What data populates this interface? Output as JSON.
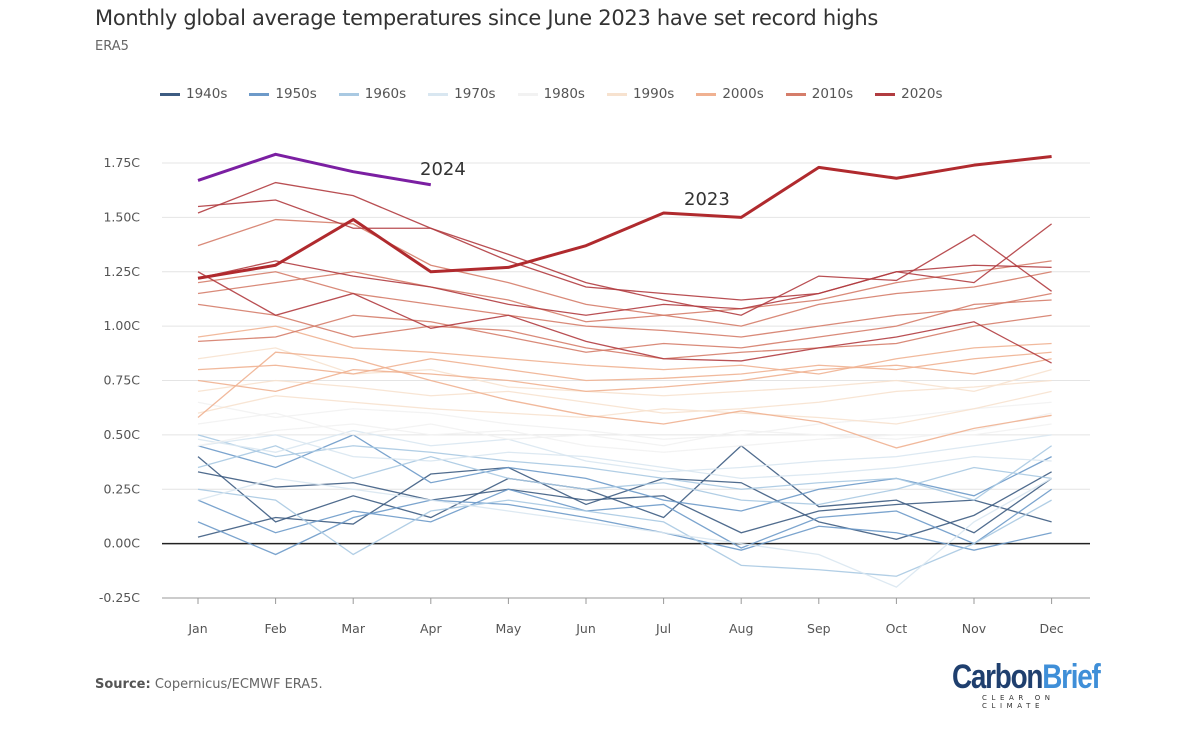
{
  "header": {
    "title": "Monthly global average temperatures since June 2023 have set record highs",
    "subtitle": "ERA5"
  },
  "footer": {
    "source_label": "Source:",
    "source_text": " Copernicus/ECMWF ERA5.",
    "logo_main_1": "Carbon",
    "logo_main_2": "Brief",
    "logo_tagline": "CLEAR ON CLIMATE"
  },
  "chart_data": {
    "type": "line",
    "title": "Monthly global average temperatures since June 2023 have set record highs",
    "subtitle": "ERA5",
    "categories": [
      "Jan",
      "Feb",
      "Mar",
      "Apr",
      "May",
      "Jun",
      "Jul",
      "Aug",
      "Sep",
      "Oct",
      "Nov",
      "Dec"
    ],
    "ylim": [
      -0.25,
      1.75
    ],
    "yticks": [
      -0.25,
      0,
      0.25,
      0.5,
      0.75,
      1.0,
      1.25,
      1.5,
      1.75
    ],
    "ytick_labels": [
      "-0.25C",
      "0.00C",
      "0.25C",
      "0.50C",
      "0.75C",
      "1.00C",
      "1.25C",
      "1.50C",
      "1.75C"
    ],
    "grid": true,
    "legend_position": "top",
    "legend": [
      {
        "label": "1940s",
        "color": "#3d5c82"
      },
      {
        "label": "1950s",
        "color": "#6d9ac9"
      },
      {
        "label": "1960s",
        "color": "#a9c9e2"
      },
      {
        "label": "1970s",
        "color": "#d9e7f1"
      },
      {
        "label": "1980s",
        "color": "#f2f2f2"
      },
      {
        "label": "1990s",
        "color": "#f7e2cf"
      },
      {
        "label": "2000s",
        "color": "#f0b191"
      },
      {
        "label": "2010s",
        "color": "#d57d6a"
      },
      {
        "label": "2020s",
        "color": "#b13c40"
      }
    ],
    "background_series": [
      {
        "decade": "1940s",
        "values": [
          0.03,
          0.12,
          0.09,
          0.32,
          0.35,
          0.18,
          0.3,
          0.28,
          0.1,
          0.02,
          0.13,
          0.33
        ]
      },
      {
        "decade": "1940s",
        "values": [
          0.33,
          0.26,
          0.28,
          0.2,
          0.25,
          0.2,
          0.22,
          0.05,
          0.15,
          0.18,
          0.2,
          0.1
        ]
      },
      {
        "decade": "1940s",
        "values": [
          0.4,
          0.1,
          0.22,
          0.12,
          0.3,
          0.25,
          0.12,
          0.45,
          0.17,
          0.2,
          0.05,
          0.3
        ]
      },
      {
        "decade": "1950s",
        "values": [
          0.2,
          0.05,
          0.15,
          0.1,
          0.25,
          0.15,
          0.18,
          -0.02,
          0.12,
          0.15,
          0.0,
          0.25
        ]
      },
      {
        "decade": "1950s",
        "values": [
          0.45,
          0.35,
          0.5,
          0.28,
          0.35,
          0.3,
          0.2,
          0.15,
          0.25,
          0.3,
          0.22,
          0.4
        ]
      },
      {
        "decade": "1950s",
        "values": [
          0.1,
          -0.05,
          0.12,
          0.2,
          0.18,
          0.12,
          0.05,
          -0.03,
          0.08,
          0.05,
          -0.03,
          0.05
        ]
      },
      {
        "decade": "1960s",
        "values": [
          0.35,
          0.45,
          0.3,
          0.4,
          0.3,
          0.25,
          0.28,
          0.2,
          0.18,
          0.25,
          0.35,
          0.3
        ]
      },
      {
        "decade": "1960s",
        "values": [
          0.25,
          0.2,
          -0.05,
          0.15,
          0.2,
          0.15,
          0.1,
          -0.1,
          -0.12,
          -0.15,
          0.0,
          0.2
        ]
      },
      {
        "decade": "1960s",
        "values": [
          0.5,
          0.4,
          0.45,
          0.42,
          0.38,
          0.35,
          0.3,
          0.25,
          0.28,
          0.3,
          0.2,
          0.45
        ]
      },
      {
        "decade": "1970s",
        "values": [
          0.45,
          0.5,
          0.4,
          0.38,
          0.42,
          0.4,
          0.35,
          0.3,
          0.32,
          0.35,
          0.4,
          0.38
        ]
      },
      {
        "decade": "1970s",
        "values": [
          0.2,
          0.3,
          0.25,
          0.2,
          0.15,
          0.1,
          0.05,
          0.0,
          -0.05,
          -0.2,
          0.1,
          0.3
        ]
      },
      {
        "decade": "1970s",
        "values": [
          0.48,
          0.42,
          0.52,
          0.45,
          0.48,
          0.38,
          0.33,
          0.35,
          0.38,
          0.4,
          0.45,
          0.5
        ]
      },
      {
        "decade": "1980s",
        "values": [
          0.55,
          0.6,
          0.5,
          0.55,
          0.48,
          0.5,
          0.45,
          0.52,
          0.5,
          0.48,
          0.52,
          0.6
        ]
      },
      {
        "decade": "1980s",
        "values": [
          0.65,
          0.58,
          0.62,
          0.6,
          0.55,
          0.52,
          0.48,
          0.5,
          0.55,
          0.58,
          0.62,
          0.65
        ]
      },
      {
        "decade": "1980s",
        "values": [
          0.45,
          0.52,
          0.55,
          0.5,
          0.52,
          0.45,
          0.42,
          0.45,
          0.48,
          0.5,
          0.5,
          0.55
        ]
      },
      {
        "decade": "1990s",
        "values": [
          0.7,
          0.75,
          0.72,
          0.68,
          0.7,
          0.65,
          0.6,
          0.62,
          0.65,
          0.7,
          0.72,
          0.75
        ]
      },
      {
        "decade": "1990s",
        "values": [
          0.85,
          0.9,
          0.78,
          0.8,
          0.72,
          0.7,
          0.68,
          0.7,
          0.72,
          0.75,
          0.7,
          0.8
        ]
      },
      {
        "decade": "1990s",
        "values": [
          0.6,
          0.68,
          0.65,
          0.62,
          0.6,
          0.58,
          0.62,
          0.6,
          0.58,
          0.55,
          0.62,
          0.7
        ]
      },
      {
        "decade": "2000s",
        "values": [
          0.58,
          0.88,
          0.85,
          0.75,
          0.66,
          0.59,
          0.55,
          0.61,
          0.56,
          0.44,
          0.53,
          0.59
        ]
      },
      {
        "decade": "2000s",
        "values": [
          0.8,
          0.82,
          0.78,
          0.85,
          0.8,
          0.75,
          0.76,
          0.78,
          0.82,
          0.8,
          0.85,
          0.88
        ]
      },
      {
        "decade": "2000s",
        "values": [
          0.95,
          1.0,
          0.9,
          0.88,
          0.85,
          0.82,
          0.8,
          0.82,
          0.78,
          0.85,
          0.9,
          0.92
        ]
      },
      {
        "decade": "2000s",
        "values": [
          0.75,
          0.7,
          0.8,
          0.78,
          0.75,
          0.7,
          0.72,
          0.75,
          0.8,
          0.82,
          0.78,
          0.85
        ]
      },
      {
        "decade": "2010s",
        "values": [
          1.1,
          1.05,
          0.95,
          1.0,
          0.98,
          0.9,
          0.85,
          0.88,
          0.9,
          0.92,
          1.0,
          1.05
        ]
      },
      {
        "decade": "2010s",
        "values": [
          1.37,
          1.49,
          1.47,
          1.28,
          1.2,
          1.1,
          1.05,
          1.08,
          1.12,
          1.2,
          1.25,
          1.3
        ]
      },
      {
        "decade": "2010s",
        "values": [
          0.93,
          0.95,
          1.05,
          1.02,
          0.95,
          0.88,
          0.92,
          0.9,
          0.95,
          1.0,
          1.1,
          1.12
        ]
      },
      {
        "decade": "2010s",
        "values": [
          1.2,
          1.25,
          1.15,
          1.1,
          1.05,
          1.0,
          0.98,
          0.95,
          1.0,
          1.05,
          1.08,
          1.15
        ]
      },
      {
        "decade": "2010s",
        "values": [
          1.15,
          1.2,
          1.25,
          1.18,
          1.12,
          1.02,
          1.05,
          1.0,
          1.1,
          1.15,
          1.18,
          1.25
        ]
      },
      {
        "decade": "2020s",
        "values": [
          1.55,
          1.58,
          1.45,
          1.45,
          1.33,
          1.2,
          1.12,
          1.05,
          1.23,
          1.21,
          1.42,
          1.16
        ]
      },
      {
        "decade": "2020s",
        "values": [
          1.25,
          1.05,
          1.15,
          0.99,
          1.05,
          0.93,
          0.85,
          0.84,
          0.9,
          0.95,
          1.02,
          0.83
        ]
      },
      {
        "decade": "2020s",
        "values": [
          1.22,
          1.3,
          1.23,
          1.18,
          1.1,
          1.05,
          1.1,
          1.08,
          1.15,
          1.25,
          1.28,
          1.27
        ]
      },
      {
        "decade": "2020s",
        "values": [
          1.52,
          1.66,
          1.6,
          1.45,
          1.3,
          1.18,
          1.15,
          1.12,
          1.15,
          1.25,
          1.2,
          1.47
        ]
      }
    ],
    "highlight_series": [
      {
        "name": "2023",
        "color": "#b02a2e",
        "values": [
          1.22,
          1.28,
          1.49,
          1.25,
          1.27,
          1.37,
          1.52,
          1.5,
          1.73,
          1.68,
          1.74,
          1.78
        ]
      },
      {
        "name": "2024",
        "color": "#7b1fa2",
        "values": [
          1.67,
          1.79,
          1.71,
          1.65
        ]
      }
    ]
  }
}
